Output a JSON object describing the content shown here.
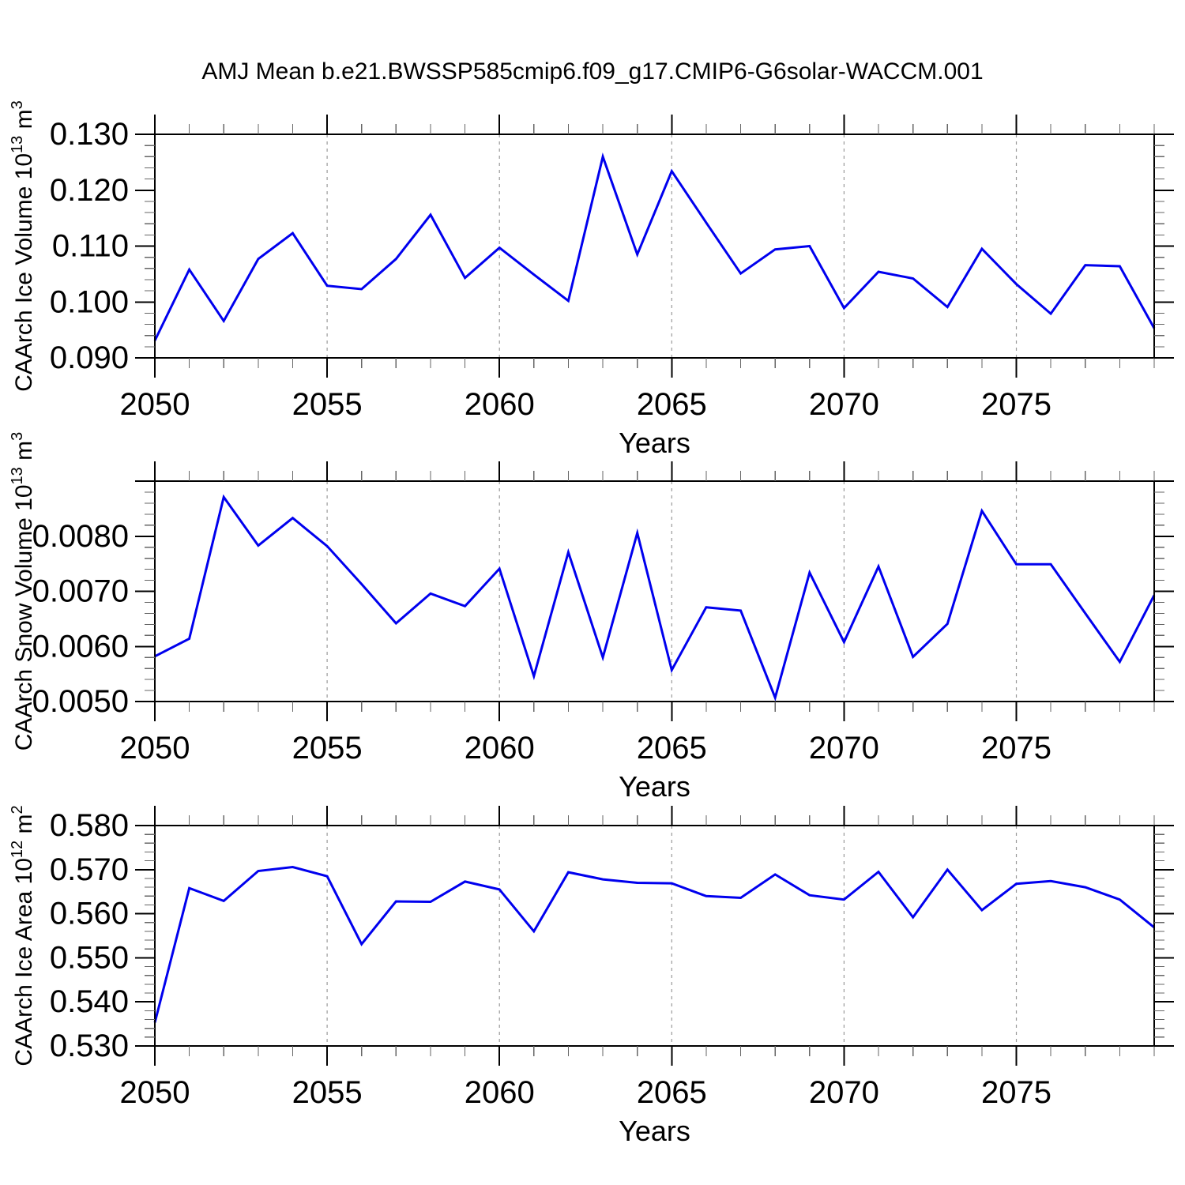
{
  "title": "AMJ Mean b.e21.BWSSP585cmip6.f09_g17.CMIP6-G6solar-WACCM.001",
  "accent_color": "#0000EE",
  "chart_data": [
    {
      "type": "line",
      "name": "ice-volume",
      "ylabel": "CAArch Ice Volume 10^13 m^3",
      "ylabel_segments": [
        {
          "t": "CAArch Ice Volume 10"
        },
        {
          "t": "13",
          "sup": true
        },
        {
          "t": " m"
        },
        {
          "t": "3",
          "sup": true
        }
      ],
      "xlabel": "Years",
      "xlim": [
        2050,
        2079
      ],
      "ylim": [
        0.09,
        0.13
      ],
      "xticks": [
        2050,
        2055,
        2060,
        2065,
        2070,
        2075
      ],
      "xtick_labels": [
        "2050",
        "2055",
        "2060",
        "2065",
        "2070",
        "2075"
      ],
      "grid_x": [
        2055,
        2060,
        2065,
        2070,
        2075
      ],
      "yticks": [
        {
          "v": 0.09,
          "label": "0.090"
        },
        {
          "v": 0.1,
          "label": "0.100"
        },
        {
          "v": 0.11,
          "label": "0.110"
        },
        {
          "v": 0.12,
          "label": "0.120"
        },
        {
          "v": 0.13,
          "label": "0.130"
        }
      ],
      "yminor_step": 0.002,
      "xminor_step": 1,
      "line_color": "#0000EE",
      "x": [
        2050,
        2051,
        2052,
        2053,
        2054,
        2055,
        2056,
        2057,
        2058,
        2059,
        2060,
        2061,
        2062,
        2063,
        2064,
        2065,
        2066,
        2067,
        2068,
        2069,
        2070,
        2071,
        2072,
        2073,
        2074,
        2075,
        2076,
        2077,
        2078,
        2079
      ],
      "values": [
        0.0931,
        0.1058,
        0.0966,
        0.1077,
        0.1123,
        0.1029,
        0.1023,
        0.1077,
        0.1156,
        0.1043,
        0.1097,
        0.1049,
        0.1002,
        0.126,
        0.1085,
        0.1234,
        0.1142,
        0.1051,
        0.1094,
        0.11,
        0.0989,
        0.1054,
        0.1042,
        0.0991,
        0.1095,
        0.1032,
        0.0979,
        0.1066,
        0.1064,
        0.0953
      ]
    },
    {
      "type": "line",
      "name": "snow-volume",
      "ylabel": "CAArch Snow Volume 10^13 m^3",
      "ylabel_segments": [
        {
          "t": "CAArch Snow Volume 10"
        },
        {
          "t": "13",
          "sup": true
        },
        {
          "t": " m"
        },
        {
          "t": "3",
          "sup": true
        }
      ],
      "xlabel": "Years",
      "xlim": [
        2050,
        2079
      ],
      "ylim": [
        0.005,
        0.009
      ],
      "xticks": [
        2050,
        2055,
        2060,
        2065,
        2070,
        2075
      ],
      "xtick_labels": [
        "2050",
        "2055",
        "2060",
        "2065",
        "2070",
        "2075"
      ],
      "grid_x": [
        2055,
        2060,
        2065,
        2070,
        2075
      ],
      "yticks": [
        {
          "v": 0.005,
          "label": "0.0050"
        },
        {
          "v": 0.006,
          "label": "0.0060"
        },
        {
          "v": 0.007,
          "label": "0.0070"
        },
        {
          "v": 0.008,
          "label": "0.0080"
        },
        {
          "v": 0.009,
          "label": ""
        }
      ],
      "yminor_step": 0.0002,
      "xminor_step": 1,
      "line_color": "#0000EE",
      "x": [
        2050,
        2051,
        2052,
        2053,
        2054,
        2055,
        2056,
        2057,
        2058,
        2059,
        2060,
        2061,
        2062,
        2063,
        2064,
        2065,
        2066,
        2067,
        2068,
        2069,
        2070,
        2071,
        2072,
        2073,
        2074,
        2075,
        2076,
        2077,
        2078,
        2079
      ],
      "values": [
        0.00582,
        0.00614,
        0.00871,
        0.00783,
        0.00833,
        0.00782,
        0.00713,
        0.00642,
        0.00696,
        0.00673,
        0.00741,
        0.00546,
        0.00771,
        0.0058,
        0.00806,
        0.00557,
        0.00671,
        0.00665,
        0.00507,
        0.00734,
        0.00608,
        0.00745,
        0.00581,
        0.00641,
        0.00846,
        0.00749,
        0.00749,
        0.0066,
        0.00572,
        0.00693
      ]
    },
    {
      "type": "line",
      "name": "ice-area",
      "ylabel": "CAArch Ice Area 10^12 m^2",
      "ylabel_segments": [
        {
          "t": "CAArch Ice Area 10"
        },
        {
          "t": "12",
          "sup": true
        },
        {
          "t": " m"
        },
        {
          "t": "2",
          "sup": true
        }
      ],
      "xlabel": "Years",
      "xlim": [
        2050,
        2079
      ],
      "ylim": [
        0.53,
        0.58
      ],
      "xticks": [
        2050,
        2055,
        2060,
        2065,
        2070,
        2075
      ],
      "xtick_labels": [
        "2050",
        "2055",
        "2060",
        "2065",
        "2070",
        "2075"
      ],
      "grid_x": [
        2055,
        2060,
        2065,
        2070,
        2075
      ],
      "yticks": [
        {
          "v": 0.53,
          "label": "0.530"
        },
        {
          "v": 0.54,
          "label": "0.540"
        },
        {
          "v": 0.55,
          "label": "0.550"
        },
        {
          "v": 0.56,
          "label": "0.560"
        },
        {
          "v": 0.57,
          "label": "0.570"
        },
        {
          "v": 0.58,
          "label": "0.580"
        }
      ],
      "yminor_step": 0.002,
      "xminor_step": 1,
      "line_color": "#0000EE",
      "x": [
        2050,
        2051,
        2052,
        2053,
        2054,
        2055,
        2056,
        2057,
        2058,
        2059,
        2060,
        2061,
        2062,
        2063,
        2064,
        2065,
        2066,
        2067,
        2068,
        2069,
        2070,
        2071,
        2072,
        2073,
        2074,
        2075,
        2076,
        2077,
        2078,
        2079
      ],
      "values": [
        0.5353,
        0.5658,
        0.5629,
        0.5697,
        0.5706,
        0.5685,
        0.5531,
        0.5628,
        0.5627,
        0.5673,
        0.5655,
        0.556,
        0.5694,
        0.5678,
        0.567,
        0.5669,
        0.564,
        0.5636,
        0.5689,
        0.5642,
        0.5632,
        0.5695,
        0.5592,
        0.57,
        0.5608,
        0.5668,
        0.5674,
        0.566,
        0.5632,
        0.5569
      ]
    }
  ]
}
